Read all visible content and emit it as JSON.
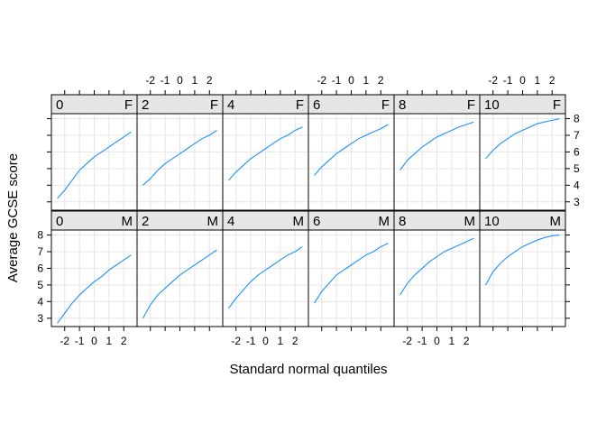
{
  "chart_data": {
    "type": "line",
    "xlabel": "Standard normal quantiles",
    "ylabel": "Average GCSE score",
    "x_ticks": [
      -2,
      -1,
      0,
      1,
      2
    ],
    "x_tick_labels": [
      "-2",
      "-1",
      "0",
      "1",
      "2"
    ],
    "y_ticks": [
      3,
      4,
      5,
      6,
      7,
      8
    ],
    "y_tick_labels": [
      "3",
      "4",
      "5",
      "6",
      "7",
      "8"
    ],
    "xlim": [
      -2.9,
      2.9
    ],
    "ylim": [
      2.5,
      8.3
    ],
    "grid": true,
    "layout": {
      "rows": [
        "F",
        "M"
      ],
      "columns": [
        "0",
        "2",
        "4",
        "6",
        "8",
        "10"
      ]
    },
    "panels": [
      {
        "row": 0,
        "col": 0,
        "label_left": "0",
        "label_right": "F",
        "x": [
          -2.5,
          -2,
          -1.5,
          -1,
          -0.5,
          0,
          0.5,
          1,
          1.5,
          2,
          2.5
        ],
        "y": [
          3.2,
          3.7,
          4.3,
          4.9,
          5.3,
          5.7,
          6.0,
          6.3,
          6.6,
          6.9,
          7.2
        ]
      },
      {
        "row": 0,
        "col": 1,
        "label_left": "2",
        "label_right": "F",
        "x": [
          -2.5,
          -2,
          -1.5,
          -1,
          -0.5,
          0,
          0.5,
          1,
          1.5,
          2,
          2.5
        ],
        "y": [
          4.0,
          4.4,
          4.9,
          5.3,
          5.6,
          5.9,
          6.2,
          6.5,
          6.8,
          7.0,
          7.3
        ]
      },
      {
        "row": 0,
        "col": 2,
        "label_left": "4",
        "label_right": "F",
        "x": [
          -2.5,
          -2,
          -1.5,
          -1,
          -0.5,
          0,
          0.5,
          1,
          1.5,
          2,
          2.5
        ],
        "y": [
          4.3,
          4.8,
          5.2,
          5.6,
          5.9,
          6.2,
          6.5,
          6.8,
          7.0,
          7.3,
          7.5
        ]
      },
      {
        "row": 0,
        "col": 3,
        "label_left": "6",
        "label_right": "F",
        "x": [
          -2.5,
          -2,
          -1.5,
          -1,
          -0.5,
          0,
          0.5,
          1,
          1.5,
          2,
          2.5
        ],
        "y": [
          4.6,
          5.1,
          5.5,
          5.9,
          6.2,
          6.5,
          6.8,
          7.0,
          7.2,
          7.4,
          7.65
        ]
      },
      {
        "row": 0,
        "col": 4,
        "label_left": "8",
        "label_right": "F",
        "x": [
          -2.5,
          -2,
          -1.5,
          -1,
          -0.5,
          0,
          0.5,
          1,
          1.5,
          2,
          2.5
        ],
        "y": [
          4.9,
          5.5,
          5.9,
          6.3,
          6.6,
          6.9,
          7.1,
          7.3,
          7.5,
          7.65,
          7.8
        ]
      },
      {
        "row": 0,
        "col": 5,
        "label_left": "10",
        "label_right": "F",
        "x": [
          -2.5,
          -2,
          -1.5,
          -1,
          -0.5,
          0,
          0.5,
          1,
          1.5,
          2,
          2.5
        ],
        "y": [
          5.6,
          6.1,
          6.5,
          6.8,
          7.1,
          7.3,
          7.5,
          7.7,
          7.8,
          7.9,
          8.0
        ]
      },
      {
        "row": 1,
        "col": 0,
        "label_left": "0",
        "label_right": "M",
        "x": [
          -2.5,
          -2,
          -1.5,
          -1,
          -0.5,
          0,
          0.5,
          1,
          1.5,
          2,
          2.5
        ],
        "y": [
          2.7,
          3.3,
          3.9,
          4.4,
          4.8,
          5.2,
          5.5,
          5.9,
          6.2,
          6.5,
          6.8
        ]
      },
      {
        "row": 1,
        "col": 1,
        "label_left": "2",
        "label_right": "M",
        "x": [
          -2.5,
          -2,
          -1.5,
          -1,
          -0.5,
          0,
          0.5,
          1,
          1.5,
          2,
          2.5
        ],
        "y": [
          3.0,
          3.8,
          4.4,
          4.8,
          5.2,
          5.6,
          5.9,
          6.2,
          6.5,
          6.8,
          7.1
        ]
      },
      {
        "row": 1,
        "col": 2,
        "label_left": "4",
        "label_right": "M",
        "x": [
          -2.5,
          -2,
          -1.5,
          -1,
          -0.5,
          0,
          0.5,
          1,
          1.5,
          2,
          2.5
        ],
        "y": [
          3.6,
          4.2,
          4.7,
          5.2,
          5.6,
          5.9,
          6.2,
          6.5,
          6.8,
          7.0,
          7.3
        ]
      },
      {
        "row": 1,
        "col": 3,
        "label_left": "6",
        "label_right": "M",
        "x": [
          -2.5,
          -2,
          -1.5,
          -1,
          -0.5,
          0,
          0.5,
          1,
          1.5,
          2,
          2.5
        ],
        "y": [
          3.9,
          4.6,
          5.1,
          5.6,
          5.9,
          6.2,
          6.5,
          6.8,
          7.0,
          7.3,
          7.5
        ]
      },
      {
        "row": 1,
        "col": 4,
        "label_left": "8",
        "label_right": "M",
        "x": [
          -2.5,
          -2,
          -1.5,
          -1,
          -0.5,
          0,
          0.5,
          1,
          1.5,
          2,
          2.5
        ],
        "y": [
          4.4,
          5.1,
          5.6,
          6.0,
          6.4,
          6.7,
          7.0,
          7.2,
          7.4,
          7.6,
          7.8
        ]
      },
      {
        "row": 1,
        "col": 5,
        "label_left": "10",
        "label_right": "M",
        "x": [
          -2.5,
          -2,
          -1.5,
          -1,
          -0.5,
          0,
          0.5,
          1,
          1.5,
          2,
          2.5
        ],
        "y": [
          5.0,
          5.8,
          6.3,
          6.7,
          7.0,
          7.3,
          7.5,
          7.7,
          7.85,
          7.95,
          8.0
        ]
      }
    ],
    "colors": {
      "line": "#1e90ff",
      "strip": "#e6e6e6",
      "grid": "#e5e5e5"
    }
  }
}
